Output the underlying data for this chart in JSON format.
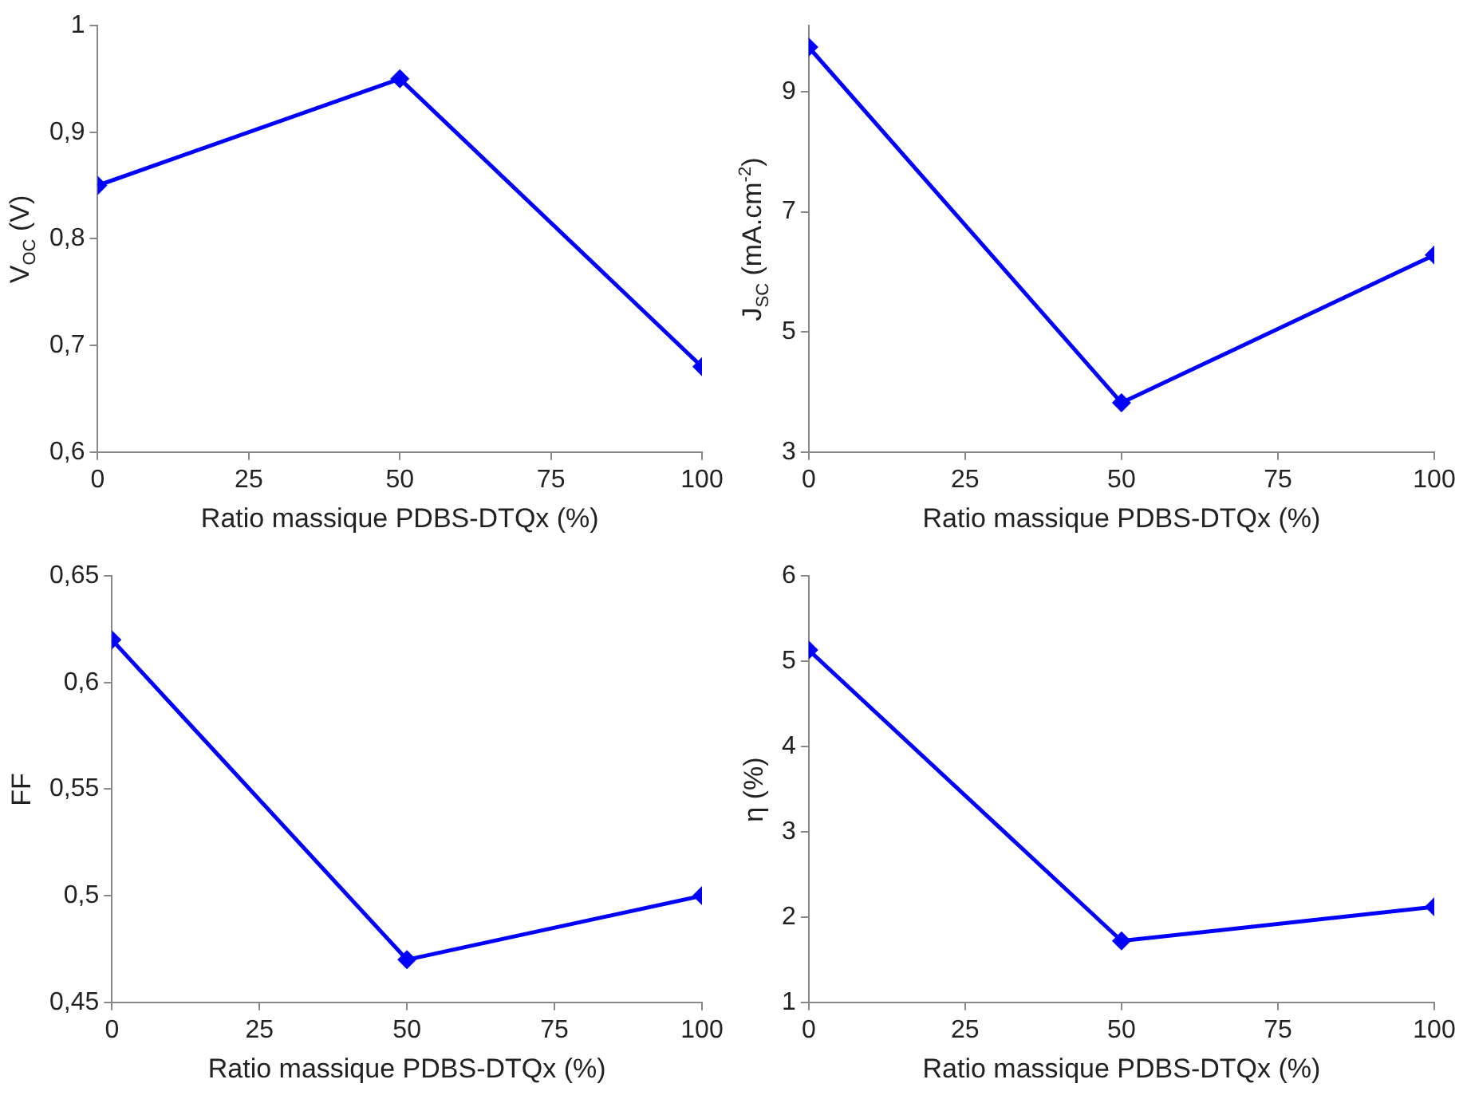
{
  "chart_data": [
    {
      "type": "line",
      "xlabel": "Ratio massique PDBS-DTQx (%)",
      "ylabel": "V$_{OC}$ (V)",
      "x": [
        0,
        50,
        100
      ],
      "series": [
        {
          "color": "#0000ff",
          "values": [
            0.85,
            0.95,
            0.68
          ]
        }
      ],
      "xlim": [
        0,
        100
      ],
      "xticks": [
        0,
        25,
        50,
        75,
        100
      ],
      "ylim": [
        0.6,
        1
      ],
      "yticks": [
        {
          "value": 0.6,
          "label": "0,6"
        },
        {
          "value": 0.7,
          "label": "0,7"
        },
        {
          "value": 0.8,
          "label": "0,8"
        },
        {
          "value": 0.9,
          "label": "0,9"
        },
        1
      ],
      "grid": false,
      "legend": false,
      "marker": "diamond",
      "line_style": "solid"
    },
    {
      "type": "line",
      "xlabel": "Ratio massique PDBS-DTQx (%)",
      "ylabel": "J$_{SC}$ (mA.cm$^{-2}$)",
      "x": [
        0,
        50,
        100
      ],
      "series": [
        {
          "color": "#0000ff",
          "values": [
            9.74,
            3.82,
            6.28
          ]
        }
      ],
      "xlim": [
        0,
        100
      ],
      "xticks": [
        0,
        25,
        50,
        75,
        100
      ],
      "ylim": [
        3,
        10.1
      ],
      "yticks": [
        3,
        5,
        7,
        9
      ],
      "grid": false,
      "legend": false,
      "marker": "diamond",
      "line_style": "solid"
    },
    {
      "type": "line",
      "xlabel": "Ratio massique PDBS-DTQx (%)",
      "ylabel": "FF",
      "x": [
        0,
        50,
        100
      ],
      "series": [
        {
          "color": "#0000ff",
          "values": [
            0.62,
            0.47,
            0.5
          ]
        }
      ],
      "xlim": [
        0,
        100
      ],
      "xticks": [
        0,
        25,
        50,
        75,
        100
      ],
      "ylim": [
        0.45,
        0.65
      ],
      "yticks": [
        {
          "value": 0.45,
          "label": "0,45"
        },
        {
          "value": 0.5,
          "label": "0,5"
        },
        {
          "value": 0.55,
          "label": "0,55"
        },
        {
          "value": 0.6,
          "label": "0,6"
        },
        {
          "value": 0.65,
          "label": "0,65"
        }
      ],
      "grid": false,
      "legend": false,
      "marker": "diamond",
      "line_style": "solid"
    },
    {
      "type": "line",
      "xlabel": "Ratio massique PDBS-DTQx (%)",
      "ylabel": "η (%)",
      "x": [
        0,
        50,
        100
      ],
      "series": [
        {
          "color": "#0000ff",
          "values": [
            5.13,
            1.72,
            2.12
          ]
        }
      ],
      "xlim": [
        0,
        100
      ],
      "xticks": [
        0,
        25,
        50,
        75,
        100
      ],
      "ylim": [
        1,
        6
      ],
      "yticks": [
        1,
        2,
        3,
        4,
        5,
        6
      ],
      "grid": false,
      "legend": false,
      "marker": "diamond",
      "line_style": "solid"
    }
  ]
}
